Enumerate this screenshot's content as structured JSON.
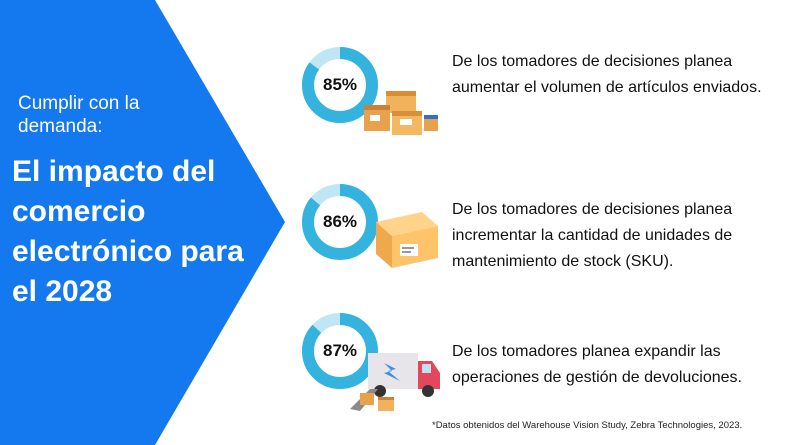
{
  "left": {
    "subtitle": "Cumplir con la demanda:",
    "title": "El impacto del comercio electrónico para el 2028"
  },
  "stats": [
    {
      "value": 85,
      "label": "85%",
      "text": "De los tomadores de decisiones planea aumentar el volumen de artículos enviados.",
      "illustration": "stacked-boxes-icon"
    },
    {
      "value": 86,
      "label": "86%",
      "text": "De los tomadores de decisiones planea incrementar la cantidad de unidades de mantenimiento de stock (SKU).",
      "illustration": "package-icon"
    },
    {
      "value": 87,
      "label": "87%",
      "text": "De los tomadores planea expandir las operaciones de gestión de devoluciones.",
      "illustration": "delivery-truck-icon"
    }
  ],
  "footnote": "*Datos obtenidos del Warehouse Vision Study, Zebra Technologies, 2023.",
  "colors": {
    "panel_blue": "#1478ee",
    "donut_main": "#35b3df",
    "donut_track": "#bfe6f5"
  }
}
